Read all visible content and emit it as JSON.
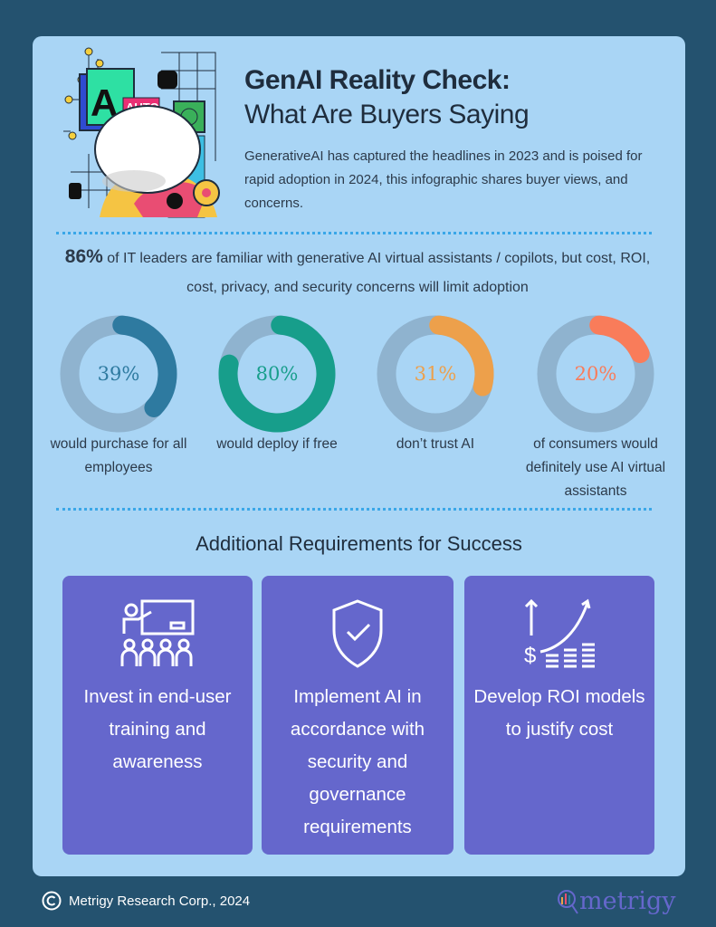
{
  "header": {
    "title_bold": "GenAI Reality Check:",
    "title_sub": "What Are Buyers Saying",
    "intro": "GenerativeAI has captured the headlines in 2023 and is poised for rapid adoption in 2024, this infographic shares buyer views, and concerns.",
    "illustration_text": [
      "AI",
      "AUTO"
    ]
  },
  "headline_stat": {
    "value": "86%",
    "text": "of IT leaders are familiar with generative AI virtual assistants / copilots, but cost, ROI, cost, privacy, and security concerns will limit adoption"
  },
  "donuts": [
    {
      "value": 39,
      "label": "39%",
      "caption": "would purchase for all employees",
      "color": "#2e7aa0"
    },
    {
      "value": 80,
      "label": "80%",
      "caption": "would deploy if free",
      "color": "#179e8b"
    },
    {
      "value": 31,
      "label": "31%",
      "caption": "don’t trust AI",
      "color": "#eda04b"
    },
    {
      "value": 20,
      "label": "20%",
      "caption": "of consumers would definitely use AI virtual assistants",
      "color": "#f97c5a"
    }
  ],
  "track_color": "#8fb3cf",
  "requirements": {
    "title": "Additional Requirements for Success",
    "items": [
      {
        "icon": "classroom-training-icon",
        "text": "Invest in end-user training and awareness"
      },
      {
        "icon": "shield-check-icon",
        "text": "Implement AI in accordance with security and governance requirements"
      },
      {
        "icon": "dollar-growth-chart-icon",
        "text": "Develop ROI models to justify cost"
      }
    ]
  },
  "footer": {
    "copyright": "Metrigy Research Corp., 2024",
    "logo": "metrigy"
  }
}
